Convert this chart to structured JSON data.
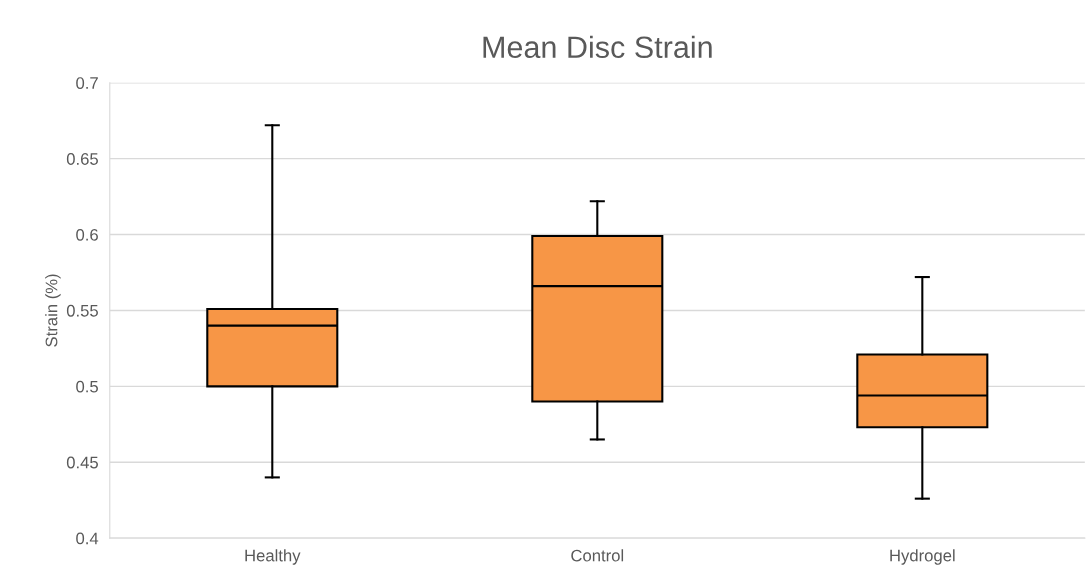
{
  "chart_data": {
    "type": "box",
    "title": "Mean Disc Strain",
    "ylabel": "Strain (%)",
    "categories": [
      "Healthy",
      "Control",
      "Hydrogel"
    ],
    "boxes": [
      {
        "low": 0.44,
        "q1": 0.5,
        "median": 0.54,
        "q3": 0.551,
        "high": 0.672
      },
      {
        "low": 0.465,
        "q1": 0.49,
        "median": 0.566,
        "q3": 0.599,
        "high": 0.622
      },
      {
        "low": 0.426,
        "q1": 0.473,
        "median": 0.494,
        "q3": 0.521,
        "high": 0.572
      }
    ],
    "color": "#f79646",
    "ylim": [
      0.4,
      0.7
    ],
    "yticks": [
      0.4,
      0.45,
      0.5,
      0.55,
      0.6,
      0.65,
      0.7
    ],
    "grid": "y",
    "legend": false
  }
}
